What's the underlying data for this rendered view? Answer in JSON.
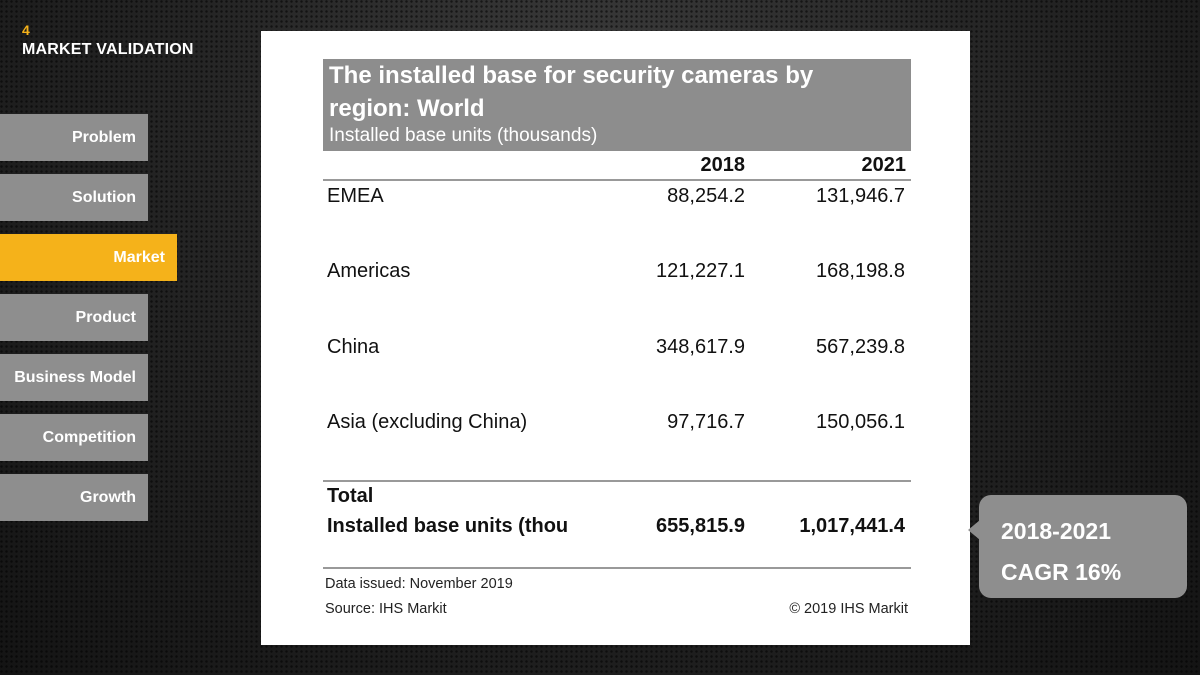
{
  "header": {
    "slide_number": "4",
    "title": "MARKET VALIDATION"
  },
  "nav": [
    {
      "label": "Problem",
      "active": false
    },
    {
      "label": "Solution",
      "active": false
    },
    {
      "label": "Market",
      "active": true
    },
    {
      "label": "Product",
      "active": false
    },
    {
      "label": "Business Model",
      "active": false
    },
    {
      "label": "Competition",
      "active": false
    },
    {
      "label": "Growth",
      "active": false
    }
  ],
  "table": {
    "title_line1": "The installed base for security cameras by",
    "title_line2": "region: World",
    "subtitle": "Installed base units (thousands)",
    "columns": [
      "2018",
      "2021"
    ],
    "rows": [
      {
        "label": "EMEA",
        "v2018": "88,254.2",
        "v2021": "131,946.7"
      },
      {
        "label": "Americas",
        "v2018": "121,227.1",
        "v2021": "168,198.8"
      },
      {
        "label": "China",
        "v2018": "348,617.9",
        "v2021": "567,239.8"
      },
      {
        "label": "Asia (excluding China)",
        "v2018": "97,716.7",
        "v2021": "150,056.1"
      }
    ],
    "total": {
      "label_line1": "Total",
      "label_line2": "Installed base units (thou",
      "v2018": "655,815.9",
      "v2021": "1,017,441.4"
    },
    "footer": {
      "data_issued": "Data issued: November 2019",
      "source": "Source: IHS Markit",
      "copyright": "© 2019 IHS Markit"
    }
  },
  "cagr": {
    "line1": "2018-2021",
    "line2": "CAGR 16%"
  },
  "colors": {
    "accent": "#f5b21a",
    "nav_bg": "#8e8e8e",
    "title_box_bg": "#8d8d8d"
  }
}
